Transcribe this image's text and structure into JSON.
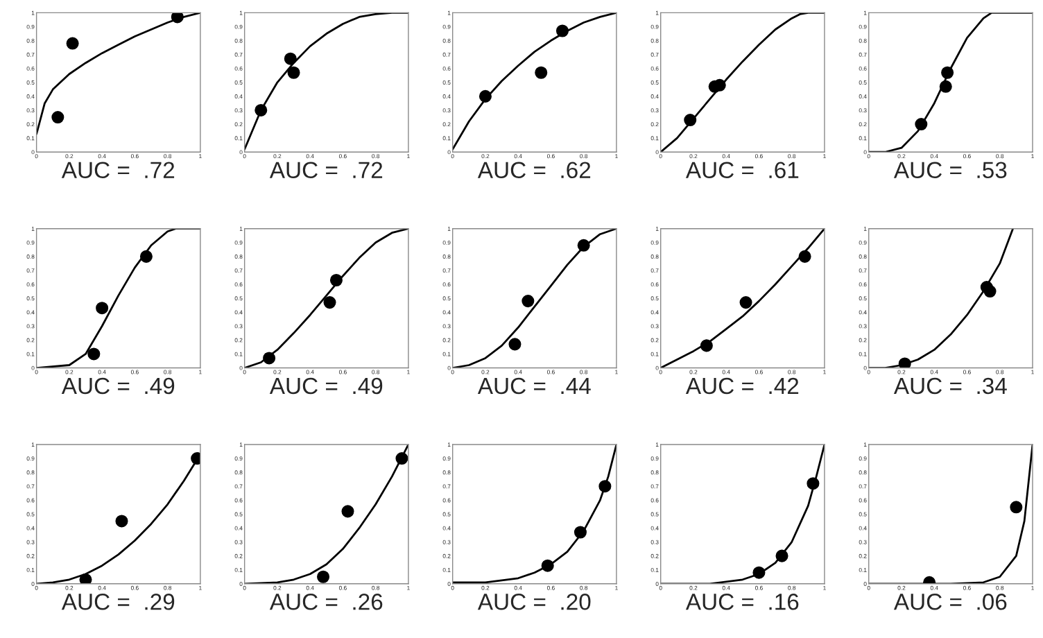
{
  "chart_data": [
    {
      "type": "scatter",
      "xlabel": "AUC =  .72",
      "xlim": [
        0,
        1
      ],
      "ylim": [
        0,
        1
      ],
      "xticks": [
        0,
        0.2,
        0.4,
        0.6,
        0.8,
        1
      ],
      "yticks": [
        0,
        0.1,
        0.2,
        0.3,
        0.4,
        0.5,
        0.6,
        0.7,
        0.8,
        0.9,
        1
      ],
      "series": [
        {
          "type": "line",
          "color": "#000000",
          "x": [
            0,
            0.05,
            0.1,
            0.2,
            0.3,
            0.4,
            0.5,
            0.6,
            0.7,
            0.8,
            0.9,
            1
          ],
          "values": [
            0.13,
            0.35,
            0.45,
            0.56,
            0.64,
            0.71,
            0.77,
            0.83,
            0.88,
            0.93,
            0.97,
            1
          ]
        },
        {
          "color": "#000000",
          "marker": "circle",
          "x": [
            0.13,
            0.22,
            0.86
          ],
          "values": [
            0.25,
            0.78,
            0.97
          ]
        }
      ]
    },
    {
      "type": "scatter",
      "xlabel": "AUC =  .72",
      "xlim": [
        0,
        1
      ],
      "ylim": [
        0,
        1
      ],
      "xticks": [
        0,
        0.2,
        0.4,
        0.6,
        0.8,
        1
      ],
      "yticks": [
        0,
        0.1,
        0.2,
        0.3,
        0.4,
        0.5,
        0.6,
        0.7,
        0.8,
        0.9,
        1
      ],
      "series": [
        {
          "type": "line",
          "color": "#000000",
          "x": [
            0,
            0.1,
            0.2,
            0.3,
            0.4,
            0.5,
            0.6,
            0.7,
            0.8,
            0.9,
            1
          ],
          "values": [
            0.02,
            0.3,
            0.5,
            0.64,
            0.76,
            0.85,
            0.92,
            0.97,
            0.99,
            1,
            1
          ]
        },
        {
          "color": "#000000",
          "marker": "circle",
          "x": [
            0.1,
            0.28,
            0.3
          ],
          "values": [
            0.3,
            0.67,
            0.57
          ]
        }
      ]
    },
    {
      "type": "scatter",
      "xlabel": "AUC =  .62",
      "xlim": [
        0,
        1
      ],
      "ylim": [
        0,
        1
      ],
      "xticks": [
        0,
        0.2,
        0.4,
        0.6,
        0.8,
        1
      ],
      "yticks": [
        0,
        0.1,
        0.2,
        0.3,
        0.4,
        0.5,
        0.6,
        0.7,
        0.8,
        0.9,
        1
      ],
      "series": [
        {
          "type": "line",
          "color": "#000000",
          "x": [
            0,
            0.1,
            0.2,
            0.3,
            0.4,
            0.5,
            0.6,
            0.7,
            0.8,
            0.9,
            1
          ],
          "values": [
            0.02,
            0.22,
            0.38,
            0.51,
            0.62,
            0.72,
            0.8,
            0.87,
            0.93,
            0.97,
            1
          ]
        },
        {
          "color": "#000000",
          "marker": "circle",
          "x": [
            0.2,
            0.54,
            0.67
          ],
          "values": [
            0.4,
            0.57,
            0.87
          ]
        }
      ]
    },
    {
      "type": "scatter",
      "xlabel": "AUC =  .61",
      "xlim": [
        0,
        1
      ],
      "ylim": [
        0,
        1
      ],
      "xticks": [
        0,
        0.2,
        0.4,
        0.6,
        0.8,
        1
      ],
      "yticks": [
        0,
        0.1,
        0.2,
        0.3,
        0.4,
        0.5,
        0.6,
        0.7,
        0.8,
        0.9,
        1
      ],
      "series": [
        {
          "type": "line",
          "color": "#000000",
          "x": [
            0,
            0.1,
            0.2,
            0.3,
            0.4,
            0.5,
            0.6,
            0.7,
            0.8,
            0.85,
            0.9,
            1
          ],
          "values": [
            0,
            0.1,
            0.24,
            0.38,
            0.52,
            0.65,
            0.77,
            0.88,
            0.96,
            0.99,
            1,
            1
          ]
        },
        {
          "color": "#000000",
          "marker": "circle",
          "x": [
            0.18,
            0.33,
            0.36
          ],
          "values": [
            0.23,
            0.47,
            0.48
          ]
        }
      ]
    },
    {
      "type": "scatter",
      "xlabel": "AUC =  .53",
      "xlim": [
        0,
        1
      ],
      "ylim": [
        0,
        1
      ],
      "xticks": [
        0,
        0.2,
        0.4,
        0.6,
        0.8,
        1
      ],
      "yticks": [
        0,
        0.1,
        0.2,
        0.3,
        0.4,
        0.5,
        0.6,
        0.7,
        0.8,
        0.9,
        1
      ],
      "series": [
        {
          "type": "line",
          "color": "#000000",
          "x": [
            0,
            0.1,
            0.2,
            0.3,
            0.4,
            0.5,
            0.6,
            0.7,
            0.75,
            0.8,
            1
          ],
          "values": [
            0,
            0,
            0.03,
            0.15,
            0.35,
            0.6,
            0.82,
            0.96,
            1,
            1,
            1
          ]
        },
        {
          "color": "#000000",
          "marker": "circle",
          "x": [
            0.32,
            0.47,
            0.48
          ],
          "values": [
            0.2,
            0.47,
            0.57
          ]
        }
      ]
    },
    {
      "type": "scatter",
      "xlabel": "AUC =  .49",
      "xlim": [
        0,
        1
      ],
      "ylim": [
        0,
        1
      ],
      "xticks": [
        0,
        0.2,
        0.4,
        0.6,
        0.8,
        1
      ],
      "yticks": [
        0,
        0.1,
        0.2,
        0.3,
        0.4,
        0.5,
        0.6,
        0.7,
        0.8,
        0.9,
        1
      ],
      "series": [
        {
          "type": "line",
          "color": "#000000",
          "x": [
            0,
            0.2,
            0.3,
            0.4,
            0.5,
            0.6,
            0.7,
            0.8,
            0.85,
            1
          ],
          "values": [
            0,
            0.02,
            0.1,
            0.3,
            0.52,
            0.72,
            0.88,
            0.98,
            1,
            1
          ]
        },
        {
          "color": "#000000",
          "marker": "circle",
          "x": [
            0.35,
            0.4,
            0.67
          ],
          "values": [
            0.1,
            0.43,
            0.8
          ]
        }
      ]
    },
    {
      "type": "scatter",
      "xlabel": "AUC =  .49",
      "xlim": [
        0,
        1
      ],
      "ylim": [
        0,
        1
      ],
      "xticks": [
        0,
        0.2,
        0.4,
        0.6,
        0.8,
        1
      ],
      "yticks": [
        0,
        0.1,
        0.2,
        0.3,
        0.4,
        0.5,
        0.6,
        0.7,
        0.8,
        0.9,
        1
      ],
      "series": [
        {
          "type": "line",
          "color": "#000000",
          "x": [
            0,
            0.1,
            0.2,
            0.3,
            0.4,
            0.5,
            0.6,
            0.7,
            0.8,
            0.9,
            1
          ],
          "values": [
            0,
            0.04,
            0.13,
            0.25,
            0.38,
            0.52,
            0.66,
            0.79,
            0.9,
            0.97,
            1
          ]
        },
        {
          "color": "#000000",
          "marker": "circle",
          "x": [
            0.15,
            0.52,
            0.56
          ],
          "values": [
            0.07,
            0.47,
            0.63
          ]
        }
      ]
    },
    {
      "type": "scatter",
      "xlabel": "AUC =  .44",
      "xlim": [
        0,
        1
      ],
      "ylim": [
        0,
        1
      ],
      "xticks": [
        0,
        0.2,
        0.4,
        0.6,
        0.8,
        1
      ],
      "yticks": [
        0,
        0.1,
        0.2,
        0.3,
        0.4,
        0.5,
        0.6,
        0.7,
        0.8,
        0.9,
        1
      ],
      "series": [
        {
          "type": "line",
          "color": "#000000",
          "x": [
            0,
            0.1,
            0.2,
            0.3,
            0.4,
            0.5,
            0.6,
            0.7,
            0.8,
            0.9,
            1
          ],
          "values": [
            0,
            0.02,
            0.07,
            0.16,
            0.29,
            0.44,
            0.59,
            0.74,
            0.87,
            0.96,
            1
          ]
        },
        {
          "color": "#000000",
          "marker": "circle",
          "x": [
            0.38,
            0.46,
            0.8
          ],
          "values": [
            0.17,
            0.48,
            0.88
          ]
        }
      ]
    },
    {
      "type": "scatter",
      "xlabel": "AUC =  .42",
      "xlim": [
        0,
        1
      ],
      "ylim": [
        0,
        1
      ],
      "xticks": [
        0,
        0.2,
        0.4,
        0.6,
        0.8,
        1
      ],
      "yticks": [
        0,
        0.1,
        0.2,
        0.3,
        0.4,
        0.5,
        0.6,
        0.7,
        0.8,
        0.9,
        1
      ],
      "series": [
        {
          "type": "line",
          "color": "#000000",
          "x": [
            0,
            0.1,
            0.2,
            0.3,
            0.4,
            0.5,
            0.6,
            0.7,
            0.8,
            0.9,
            1
          ],
          "values": [
            0,
            0.06,
            0.12,
            0.19,
            0.28,
            0.37,
            0.48,
            0.6,
            0.73,
            0.86,
            1
          ]
        },
        {
          "color": "#000000",
          "marker": "circle",
          "x": [
            0.28,
            0.52,
            0.88
          ],
          "values": [
            0.16,
            0.47,
            0.8
          ]
        }
      ]
    },
    {
      "type": "scatter",
      "xlabel": "AUC =  .34",
      "xlim": [
        0,
        1
      ],
      "ylim": [
        0,
        1
      ],
      "xticks": [
        0,
        0.2,
        0.4,
        0.6,
        0.8,
        1
      ],
      "yticks": [
        0,
        0.1,
        0.2,
        0.3,
        0.4,
        0.5,
        0.6,
        0.7,
        0.8,
        0.9,
        1
      ],
      "series": [
        {
          "type": "line",
          "color": "#000000",
          "x": [
            0,
            0.1,
            0.2,
            0.3,
            0.4,
            0.5,
            0.6,
            0.7,
            0.8,
            0.88
          ],
          "values": [
            0,
            0,
            0.02,
            0.06,
            0.13,
            0.24,
            0.38,
            0.55,
            0.75,
            1
          ]
        },
        {
          "color": "#000000",
          "marker": "circle",
          "x": [
            0.22,
            0.72,
            0.74
          ],
          "values": [
            0.03,
            0.58,
            0.55
          ]
        }
      ]
    },
    {
      "type": "scatter",
      "xlabel": "AUC =  .29",
      "xlim": [
        0,
        1
      ],
      "ylim": [
        0,
        1
      ],
      "xticks": [
        0,
        0.2,
        0.4,
        0.6,
        0.8,
        1
      ],
      "yticks": [
        0,
        0.1,
        0.2,
        0.3,
        0.4,
        0.5,
        0.6,
        0.7,
        0.8,
        0.9,
        1
      ],
      "series": [
        {
          "type": "line",
          "color": "#000000",
          "x": [
            0,
            0.1,
            0.2,
            0.3,
            0.4,
            0.5,
            0.6,
            0.7,
            0.8,
            0.9,
            1
          ],
          "values": [
            0,
            0.01,
            0.03,
            0.07,
            0.13,
            0.21,
            0.31,
            0.43,
            0.57,
            0.74,
            0.93
          ]
        },
        {
          "color": "#000000",
          "marker": "circle",
          "x": [
            0.3,
            0.52,
            0.98
          ],
          "values": [
            0.03,
            0.45,
            0.9
          ]
        }
      ]
    },
    {
      "type": "scatter",
      "xlabel": "AUC =  .26",
      "xlim": [
        0,
        1
      ],
      "ylim": [
        0,
        1
      ],
      "xticks": [
        0,
        0.2,
        0.4,
        0.6,
        0.8,
        1
      ],
      "yticks": [
        0,
        0.1,
        0.2,
        0.3,
        0.4,
        0.5,
        0.6,
        0.7,
        0.8,
        0.9,
        1
      ],
      "series": [
        {
          "type": "line",
          "color": "#000000",
          "x": [
            0,
            0.2,
            0.3,
            0.4,
            0.5,
            0.6,
            0.7,
            0.8,
            0.9,
            1
          ],
          "values": [
            0,
            0.01,
            0.03,
            0.07,
            0.14,
            0.25,
            0.4,
            0.57,
            0.77,
            1
          ]
        },
        {
          "color": "#000000",
          "marker": "circle",
          "x": [
            0.48,
            0.63,
            0.96
          ],
          "values": [
            0.05,
            0.52,
            0.9
          ]
        }
      ]
    },
    {
      "type": "scatter",
      "xlabel": "AUC =  .20",
      "xlim": [
        0,
        1
      ],
      "ylim": [
        0,
        1
      ],
      "xticks": [
        0,
        0.2,
        0.4,
        0.6,
        0.8,
        1
      ],
      "yticks": [
        0,
        0.1,
        0.2,
        0.3,
        0.4,
        0.5,
        0.6,
        0.7,
        0.8,
        0.9,
        1
      ],
      "series": [
        {
          "type": "line",
          "color": "#000000",
          "x": [
            0,
            0.2,
            0.4,
            0.5,
            0.6,
            0.7,
            0.8,
            0.9,
            0.95,
            1
          ],
          "values": [
            0.01,
            0.01,
            0.04,
            0.08,
            0.14,
            0.23,
            0.38,
            0.6,
            0.77,
            1
          ]
        },
        {
          "color": "#000000",
          "marker": "circle",
          "x": [
            0.58,
            0.78,
            0.93
          ],
          "values": [
            0.13,
            0.37,
            0.7
          ]
        }
      ]
    },
    {
      "type": "scatter",
      "xlabel": "AUC =  .16",
      "xlim": [
        0,
        1
      ],
      "ylim": [
        0,
        1
      ],
      "xticks": [
        0,
        0.2,
        0.4,
        0.6,
        0.8,
        1
      ],
      "yticks": [
        0,
        0.1,
        0.2,
        0.3,
        0.4,
        0.5,
        0.6,
        0.7,
        0.8,
        0.9,
        1
      ],
      "series": [
        {
          "type": "line",
          "color": "#000000",
          "x": [
            0,
            0.3,
            0.5,
            0.6,
            0.7,
            0.8,
            0.9,
            0.95,
            1
          ],
          "values": [
            0,
            0,
            0.03,
            0.07,
            0.15,
            0.3,
            0.56,
            0.77,
            1
          ]
        },
        {
          "color": "#000000",
          "marker": "circle",
          "x": [
            0.6,
            0.74,
            0.93
          ],
          "values": [
            0.08,
            0.2,
            0.72
          ]
        }
      ]
    },
    {
      "type": "scatter",
      "xlabel": "AUC =  .06",
      "xlim": [
        0,
        1
      ],
      "ylim": [
        0,
        1
      ],
      "xticks": [
        0,
        0.2,
        0.4,
        0.6,
        0.8,
        1
      ],
      "yticks": [
        0,
        0.1,
        0.2,
        0.3,
        0.4,
        0.5,
        0.6,
        0.7,
        0.8,
        0.9,
        1
      ],
      "series": [
        {
          "type": "line",
          "color": "#000000",
          "x": [
            0,
            0.5,
            0.7,
            0.8,
            0.9,
            0.95,
            1
          ],
          "values": [
            0,
            0,
            0.01,
            0.05,
            0.2,
            0.45,
            1
          ]
        },
        {
          "color": "#000000",
          "marker": "circle",
          "x": [
            0.37,
            0.9
          ],
          "values": [
            0.01,
            0.55
          ]
        }
      ]
    }
  ]
}
